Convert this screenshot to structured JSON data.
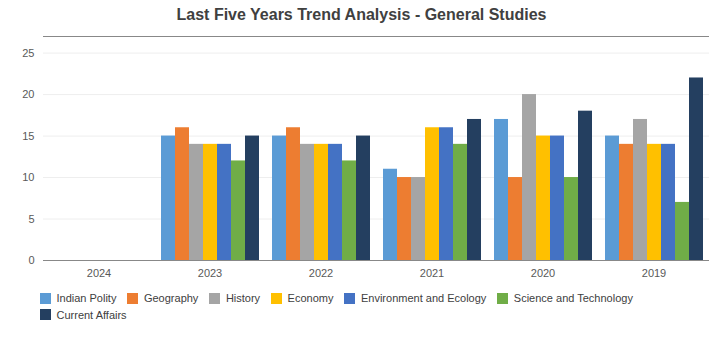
{
  "chart_data": {
    "type": "bar",
    "title": "Last Five Years Trend Analysis - General Studies",
    "categories": [
      "2024",
      "2023",
      "2022",
      "2021",
      "2020",
      "2019"
    ],
    "series": [
      {
        "name": "Indian Polity",
        "color": "#5B9BD5",
        "values": [
          0,
          15,
          15,
          11,
          17,
          15
        ]
      },
      {
        "name": "Geography",
        "color": "#ED7D31",
        "values": [
          0,
          16,
          16,
          10,
          10,
          14
        ]
      },
      {
        "name": "History",
        "color": "#A5A5A5",
        "values": [
          0,
          14,
          14,
          10,
          20,
          17
        ]
      },
      {
        "name": "Economy",
        "color": "#FFC000",
        "values": [
          0,
          14,
          14,
          16,
          15,
          14
        ]
      },
      {
        "name": "Environment and Ecology",
        "color": "#4472C4",
        "values": [
          0,
          14,
          14,
          16,
          15,
          14
        ]
      },
      {
        "name": "Science and Technology",
        "color": "#70AD47",
        "values": [
          0,
          12,
          12,
          14,
          10,
          7
        ]
      },
      {
        "name": "Current Affairs",
        "color": "#243F60",
        "values": [
          0,
          15,
          15,
          17,
          18,
          22
        ]
      }
    ],
    "ylim": [
      0,
      27
    ],
    "yticks": [
      0,
      5,
      10,
      15,
      20,
      25
    ],
    "grid": true,
    "legend": "bottom"
  }
}
